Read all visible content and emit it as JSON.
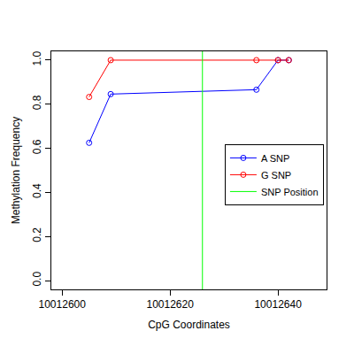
{
  "chart_data": {
    "type": "line",
    "x_label": "CpG Coordinates",
    "y_label": "Methylation Frequency",
    "xlim": [
      10012598,
      10012649
    ],
    "xticks": [
      10012600,
      10012620,
      10012640
    ],
    "ylim": [
      -0.04,
      1.04
    ],
    "yticks": [
      {
        "value": 0,
        "label": "0.0"
      },
      0.2,
      0.4,
      0.6,
      0.8,
      {
        "value": 1,
        "label": "1.0"
      }
    ],
    "grid": false,
    "legend": "right",
    "marker": "circle-open",
    "series": [
      {
        "name": "A SNP",
        "color": "#0000ff",
        "type": "line",
        "x": [
          10012605,
          10012609,
          10012636,
          10012640,
          10012642
        ],
        "values": [
          0.625,
          0.846,
          0.866,
          1.0,
          1.0
        ]
      },
      {
        "name": "G SNP",
        "color": "#ff0000",
        "type": "line",
        "x": [
          10012605,
          10012609,
          10012636,
          10012640,
          10012642
        ],
        "values": [
          0.833,
          1.0,
          1.0,
          1.0,
          1.0
        ]
      },
      {
        "name": "SNP Position",
        "color": "#00ff00",
        "type": "vline",
        "x": [
          10012626
        ]
      }
    ]
  }
}
